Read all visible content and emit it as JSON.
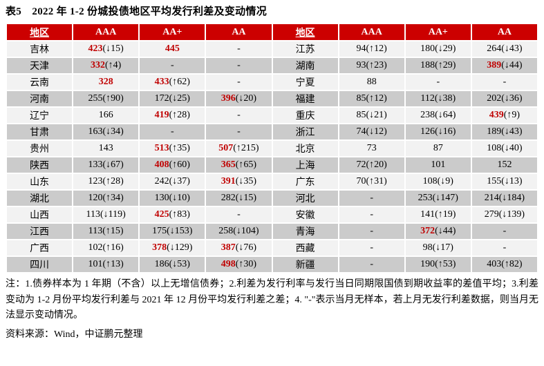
{
  "title": "表5　2022 年 1-2 份城投债地区平均发行利差及变动情况",
  "colors": {
    "header_bg": "#cc0000",
    "header_text": "#ffffff",
    "row_light": "#f2f2f2",
    "row_dark": "#cbcbcb",
    "highlight_red": "#c00000"
  },
  "table": {
    "headers": [
      "地区",
      "AAA",
      "AA+",
      "AA",
      "地区",
      "AAA",
      "AA+",
      "AA"
    ],
    "rows": [
      {
        "cells": [
          {
            "kind": "region",
            "text": "吉林"
          },
          {
            "kind": "value",
            "main": "423",
            "suffix": "(↓15)",
            "red": true
          },
          {
            "kind": "value",
            "main": "445",
            "suffix": "",
            "red": true
          },
          {
            "kind": "value",
            "main": "-",
            "suffix": "",
            "red": false
          },
          {
            "kind": "region",
            "text": "江苏"
          },
          {
            "kind": "value",
            "main": "94",
            "suffix": "(↑12)",
            "red": false
          },
          {
            "kind": "value",
            "main": "180",
            "suffix": "(↓29)",
            "red": false
          },
          {
            "kind": "value",
            "main": "264",
            "suffix": "(↓43)",
            "red": false
          }
        ]
      },
      {
        "cells": [
          {
            "kind": "region",
            "text": "天津"
          },
          {
            "kind": "value",
            "main": "332",
            "suffix": "(↑4)",
            "red": true
          },
          {
            "kind": "value",
            "main": "-",
            "suffix": "",
            "red": false
          },
          {
            "kind": "value",
            "main": "-",
            "suffix": "",
            "red": false
          },
          {
            "kind": "region",
            "text": "湖南"
          },
          {
            "kind": "value",
            "main": "93",
            "suffix": "(↑23)",
            "red": false
          },
          {
            "kind": "value",
            "main": "188",
            "suffix": "(↑29)",
            "red": false
          },
          {
            "kind": "value",
            "main": "389",
            "suffix": "(↓44)",
            "red": true
          }
        ]
      },
      {
        "cells": [
          {
            "kind": "region",
            "text": "云南"
          },
          {
            "kind": "value",
            "main": "328",
            "suffix": "",
            "red": true
          },
          {
            "kind": "value",
            "main": "433",
            "suffix": "(↑62)",
            "red": true
          },
          {
            "kind": "value",
            "main": "-",
            "suffix": "",
            "red": false
          },
          {
            "kind": "region",
            "text": "宁夏"
          },
          {
            "kind": "value",
            "main": "88",
            "suffix": "",
            "red": false
          },
          {
            "kind": "value",
            "main": "-",
            "suffix": "",
            "red": false
          },
          {
            "kind": "value",
            "main": "-",
            "suffix": "",
            "red": false
          }
        ]
      },
      {
        "cells": [
          {
            "kind": "region",
            "text": "河南"
          },
          {
            "kind": "value",
            "main": "255",
            "suffix": "(↑90)",
            "red": false
          },
          {
            "kind": "value",
            "main": "172",
            "suffix": "(↓25)",
            "red": false
          },
          {
            "kind": "value",
            "main": "396",
            "suffix": "(↓20)",
            "red": true
          },
          {
            "kind": "region",
            "text": "福建"
          },
          {
            "kind": "value",
            "main": "85",
            "suffix": "(↑12)",
            "red": false
          },
          {
            "kind": "value",
            "main": "112",
            "suffix": "(↓38)",
            "red": false
          },
          {
            "kind": "value",
            "main": "202",
            "suffix": "(↓36)",
            "red": false
          }
        ]
      },
      {
        "cells": [
          {
            "kind": "region",
            "text": "辽宁"
          },
          {
            "kind": "value",
            "main": "166",
            "suffix": "",
            "red": false
          },
          {
            "kind": "value",
            "main": "419",
            "suffix": "(↑28)",
            "red": true
          },
          {
            "kind": "value",
            "main": "-",
            "suffix": "",
            "red": false
          },
          {
            "kind": "region",
            "text": "重庆"
          },
          {
            "kind": "value",
            "main": "85",
            "suffix": "(↓21)",
            "red": false
          },
          {
            "kind": "value",
            "main": "238",
            "suffix": "(↓64)",
            "red": false
          },
          {
            "kind": "value",
            "main": "439",
            "suffix": "(↑9)",
            "red": true
          }
        ]
      },
      {
        "cells": [
          {
            "kind": "region",
            "text": "甘肃"
          },
          {
            "kind": "value",
            "main": "163",
            "suffix": "(↓34)",
            "red": false
          },
          {
            "kind": "value",
            "main": "-",
            "suffix": "",
            "red": false
          },
          {
            "kind": "value",
            "main": "-",
            "suffix": "",
            "red": false
          },
          {
            "kind": "region",
            "text": "浙江"
          },
          {
            "kind": "value",
            "main": "74",
            "suffix": "(↓12)",
            "red": false
          },
          {
            "kind": "value",
            "main": "126",
            "suffix": "(↓16)",
            "red": false
          },
          {
            "kind": "value",
            "main": "189",
            "suffix": "(↓43)",
            "red": false
          }
        ]
      },
      {
        "cells": [
          {
            "kind": "region",
            "text": "贵州"
          },
          {
            "kind": "value",
            "main": "143",
            "suffix": "",
            "red": false
          },
          {
            "kind": "value",
            "main": "513",
            "suffix": "(↑35)",
            "red": true
          },
          {
            "kind": "value",
            "main": "507",
            "suffix": "(↑215)",
            "red": true
          },
          {
            "kind": "region",
            "text": "北京"
          },
          {
            "kind": "value",
            "main": "73",
            "suffix": "",
            "red": false
          },
          {
            "kind": "value",
            "main": "87",
            "suffix": "",
            "red": false
          },
          {
            "kind": "value",
            "main": "108",
            "suffix": "(↓40)",
            "red": false
          }
        ]
      },
      {
        "cells": [
          {
            "kind": "region",
            "text": "陕西"
          },
          {
            "kind": "value",
            "main": "133",
            "suffix": "(↓67)",
            "red": false
          },
          {
            "kind": "value",
            "main": "408",
            "suffix": "(↑60)",
            "red": true
          },
          {
            "kind": "value",
            "main": "365",
            "suffix": "(↑65)",
            "red": true
          },
          {
            "kind": "region",
            "text": "上海"
          },
          {
            "kind": "value",
            "main": "72",
            "suffix": "(↑20)",
            "red": false
          },
          {
            "kind": "value",
            "main": "101",
            "suffix": "",
            "red": false
          },
          {
            "kind": "value",
            "main": "152",
            "suffix": "",
            "red": false
          }
        ]
      },
      {
        "cells": [
          {
            "kind": "region",
            "text": "山东"
          },
          {
            "kind": "value",
            "main": "123",
            "suffix": "(↑28)",
            "red": false
          },
          {
            "kind": "value",
            "main": "242",
            "suffix": "(↓37)",
            "red": false
          },
          {
            "kind": "value",
            "main": "391",
            "suffix": "(↓35)",
            "red": true
          },
          {
            "kind": "region",
            "text": "广东"
          },
          {
            "kind": "value",
            "main": "70",
            "suffix": "(↑31)",
            "red": false
          },
          {
            "kind": "value",
            "main": "108",
            "suffix": "(↓9)",
            "red": false
          },
          {
            "kind": "value",
            "main": "155",
            "suffix": "(↓13)",
            "red": false
          }
        ]
      },
      {
        "cells": [
          {
            "kind": "region",
            "text": "湖北"
          },
          {
            "kind": "value",
            "main": "120",
            "suffix": "(↑34)",
            "red": false
          },
          {
            "kind": "value",
            "main": "130",
            "suffix": "(↓10)",
            "red": false
          },
          {
            "kind": "value",
            "main": "282",
            "suffix": "(↓15)",
            "red": false
          },
          {
            "kind": "region",
            "text": "河北"
          },
          {
            "kind": "value",
            "main": "-",
            "suffix": "",
            "red": false
          },
          {
            "kind": "value",
            "main": "253",
            "suffix": "(↓147)",
            "red": false
          },
          {
            "kind": "value",
            "main": "214",
            "suffix": "(↓184)",
            "red": false
          }
        ]
      },
      {
        "cells": [
          {
            "kind": "region",
            "text": "山西"
          },
          {
            "kind": "value",
            "main": "113",
            "suffix": "(↓119)",
            "red": false
          },
          {
            "kind": "value",
            "main": "425",
            "suffix": "(↑83)",
            "red": true
          },
          {
            "kind": "value",
            "main": "-",
            "suffix": "",
            "red": false
          },
          {
            "kind": "region",
            "text": "安徽"
          },
          {
            "kind": "value",
            "main": "-",
            "suffix": "",
            "red": false
          },
          {
            "kind": "value",
            "main": "141",
            "suffix": "(↑19)",
            "red": false
          },
          {
            "kind": "value",
            "main": "279",
            "suffix": "(↓139)",
            "red": false
          }
        ]
      },
      {
        "cells": [
          {
            "kind": "region",
            "text": "江西"
          },
          {
            "kind": "value",
            "main": "113",
            "suffix": "(↑15)",
            "red": false
          },
          {
            "kind": "value",
            "main": "175",
            "suffix": "(↓153)",
            "red": false
          },
          {
            "kind": "value",
            "main": "258",
            "suffix": "(↓104)",
            "red": false
          },
          {
            "kind": "region",
            "text": "青海"
          },
          {
            "kind": "value",
            "main": "-",
            "suffix": "",
            "red": false
          },
          {
            "kind": "value",
            "main": "372",
            "suffix": "(↓44)",
            "red": true
          },
          {
            "kind": "value",
            "main": "-",
            "suffix": "",
            "red": false
          }
        ]
      },
      {
        "cells": [
          {
            "kind": "region",
            "text": "广西"
          },
          {
            "kind": "value",
            "main": "102",
            "suffix": "(↑16)",
            "red": false
          },
          {
            "kind": "value",
            "main": "378",
            "suffix": "(↓129)",
            "red": true
          },
          {
            "kind": "value",
            "main": "387",
            "suffix": "(↓76)",
            "red": true
          },
          {
            "kind": "region",
            "text": "西藏"
          },
          {
            "kind": "value",
            "main": "-",
            "suffix": "",
            "red": false
          },
          {
            "kind": "value",
            "main": "98",
            "suffix": "(↓17)",
            "red": false
          },
          {
            "kind": "value",
            "main": "-",
            "suffix": "",
            "red": false
          }
        ]
      },
      {
        "cells": [
          {
            "kind": "region",
            "text": "四川"
          },
          {
            "kind": "value",
            "main": "101",
            "suffix": "(↑13)",
            "red": false
          },
          {
            "kind": "value",
            "main": "186",
            "suffix": "(↓53)",
            "red": false
          },
          {
            "kind": "value",
            "main": "498",
            "suffix": "(↑30)",
            "red": true
          },
          {
            "kind": "region",
            "text": "新疆"
          },
          {
            "kind": "value",
            "main": "-",
            "suffix": "",
            "red": false
          },
          {
            "kind": "value",
            "main": "190",
            "suffix": "(↑53)",
            "red": false
          },
          {
            "kind": "value",
            "main": "403",
            "suffix": "(↑82)",
            "red": false
          }
        ]
      }
    ]
  },
  "notes": "注：1.债券样本为 1 年期（不含）以上无增信债券；2.利差为发行利率与发行当日同期限国债到期收益率的差值平均；3.利差变动为 1-2 月份平均发行利差与 2021 年 12 月份平均发行利差之差；4. \"-\"表示当月无样本，若上月无发行利差数据，则当月无法显示变动情况。",
  "source": "资料来源：Wind，中证鹏元整理"
}
